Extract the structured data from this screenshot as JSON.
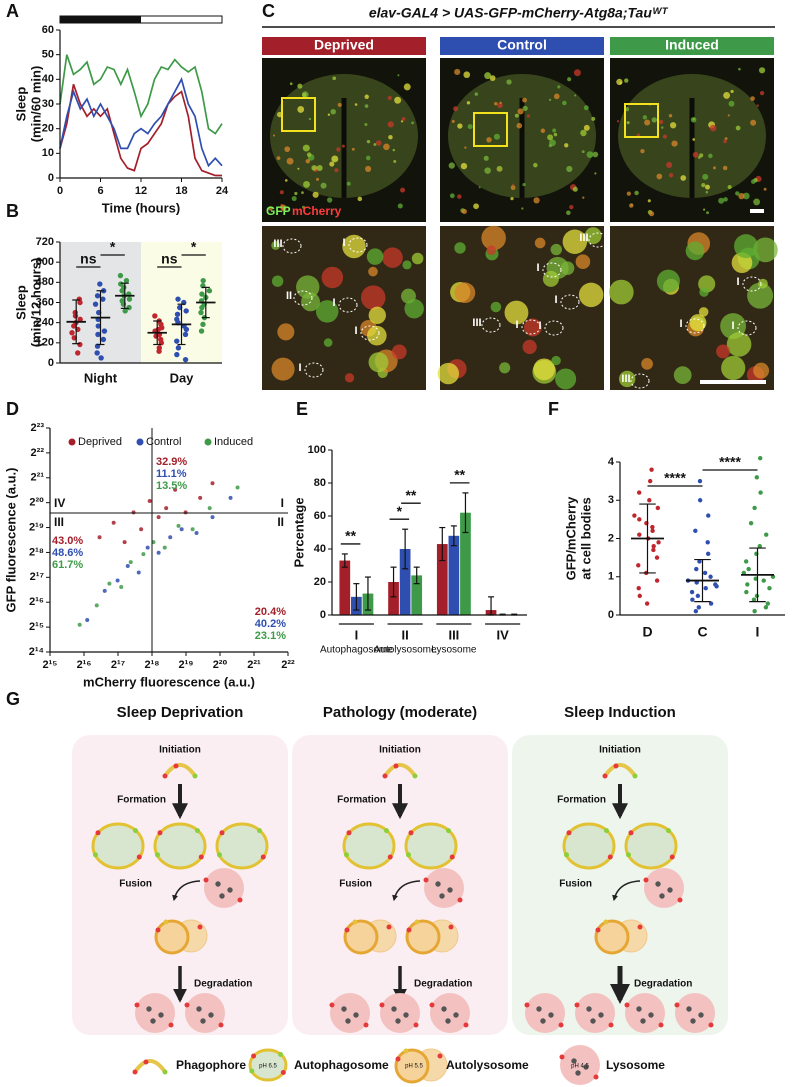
{
  "panel_labels": [
    "A",
    "B",
    "C",
    "D",
    "E",
    "F",
    "G"
  ],
  "chart_data": [
    {
      "type": "line",
      "xlabel": "Time (hours)",
      "ylabel": [
        "Sleep",
        "(min/60 min)"
      ],
      "x": [
        0,
        1,
        2,
        3,
        4,
        5,
        6,
        7,
        8,
        9,
        10,
        11,
        12,
        13,
        14,
        15,
        16,
        17,
        18,
        19,
        20,
        21,
        22,
        23,
        24
      ],
      "xlim": [
        0,
        24
      ],
      "xticks": [
        0,
        6,
        12,
        18,
        24
      ],
      "ylim": [
        0,
        60
      ],
      "yticks": [
        0,
        10,
        20,
        30,
        40,
        50,
        60
      ],
      "dark_period": [
        0,
        12
      ],
      "series": [
        {
          "color": "#a3202a",
          "values": [
            12,
            22,
            38,
            30,
            25,
            28,
            25,
            28,
            18,
            8,
            4,
            3,
            12,
            14,
            18,
            22,
            30,
            33,
            35,
            25,
            8,
            3,
            2,
            1,
            1
          ]
        },
        {
          "color": "#2f4fb0",
          "values": [
            12,
            25,
            35,
            28,
            32,
            25,
            30,
            25,
            20,
            12,
            12,
            18,
            20,
            18,
            22,
            25,
            30,
            35,
            40,
            30,
            25,
            12,
            5,
            8,
            5
          ]
        },
        {
          "color": "#3e9a48",
          "values": [
            30,
            50,
            42,
            44,
            47,
            38,
            40,
            45,
            44,
            38,
            44,
            35,
            25,
            30,
            40,
            45,
            44,
            48,
            45,
            43,
            45,
            35,
            20,
            18,
            22
          ]
        }
      ]
    },
    {
      "type": "dotplot",
      "ylabel": [
        "Sleep",
        "(min/12 hours)"
      ],
      "categories": [
        "Night",
        "Day"
      ],
      "backgrounds": [
        "#e4e5e7",
        "#fbfce6"
      ],
      "ylim": [
        0,
        720
      ],
      "yticks": [
        0,
        120,
        240,
        360,
        480,
        600,
        720
      ],
      "series": [
        {
          "color": "#c0262e",
          "points": [
            [
              380,
              360,
              300,
              280,
              260,
              240,
              220,
              200,
              180,
              150,
              110,
              60
            ],
            [
              280,
              250,
              230,
              210,
              200,
              190,
              170,
              160,
              140,
              120,
              90,
              70
            ]
          ],
          "mean": [
            245,
            180
          ],
          "sd": [
            130,
            70
          ]
        },
        {
          "color": "#2f4fb0",
          "points": [
            [
              470,
              430,
              400,
              380,
              350,
              300,
              260,
              220,
              190,
              170,
              140,
              100,
              60,
              30
            ],
            [
              380,
              360,
              330,
              310,
              290,
              260,
              240,
              220,
              200,
              170,
              130,
              90,
              50,
              20
            ]
          ],
          "mean": [
            270,
            230
          ],
          "sd": [
            160,
            120
          ]
        },
        {
          "color": "#3e9a48",
          "points": [
            [
              520,
              490,
              470,
              450,
              430,
              410,
              400,
              380,
              370,
              350,
              330,
              310
            ],
            [
              490,
              460,
              430,
              410,
              390,
              370,
              350,
              330,
              300,
              270,
              230,
              190
            ]
          ],
          "mean": [
            400,
            360
          ],
          "sd": [
            75,
            90
          ]
        }
      ],
      "annotations": [
        {
          "category": 0,
          "pair": [
            0,
            1
          ],
          "text": "ns"
        },
        {
          "category": 0,
          "pair": [
            1,
            2
          ],
          "text": "*"
        },
        {
          "category": 1,
          "pair": [
            0,
            1
          ],
          "text": "ns"
        },
        {
          "category": 1,
          "pair": [
            1,
            2
          ],
          "text": "*"
        }
      ]
    },
    {
      "type": "scatter",
      "xlabel": "mCherry fluorescence (a.u.)",
      "ylabel": "GFP fluorescence (a.u.)",
      "log_base": 2,
      "xlim": [
        32768,
        4194304
      ],
      "ylim": [
        16384,
        8388608
      ],
      "xticks": [
        {
          "value": 32768,
          "label": "2¹⁵"
        },
        {
          "value": 65536,
          "label": "2¹⁶"
        },
        {
          "value": 131072,
          "label": "2¹⁷"
        },
        {
          "value": 262144,
          "label": "2¹⁸"
        },
        {
          "value": 524288,
          "label": "2¹⁹"
        },
        {
          "value": 1048576,
          "label": "2²⁰"
        },
        {
          "value": 2097152,
          "label": "2²¹"
        },
        {
          "value": 4194304,
          "label": "2²²"
        }
      ],
      "yticks": [
        {
          "value": 16384,
          "label": "2¹⁴"
        },
        {
          "value": 32768,
          "label": "2¹⁵"
        },
        {
          "value": 65536,
          "label": "2¹⁶"
        },
        {
          "value": 131072,
          "label": "2¹⁷"
        },
        {
          "value": 262144,
          "label": "2¹⁸"
        },
        {
          "value": 524288,
          "label": "2¹⁹"
        },
        {
          "value": 1048576,
          "label": "2²⁰"
        },
        {
          "value": 2097152,
          "label": "2²¹"
        },
        {
          "value": 4194304,
          "label": "2²²"
        },
        {
          "value": 8388608,
          "label": "2²³"
        }
      ],
      "thresholds": [
        262144,
        786432
      ],
      "quadrants": [
        "I",
        "II",
        "III",
        "IV"
      ],
      "series": [
        {
          "name": "Deprived",
          "color": "#a3202a",
          "x": [
            90000,
            120000,
            150000,
            180000,
            210000,
            250000,
            300000,
            350000,
            420000,
            520000,
            700000,
            900000
          ],
          "y": [
            400000,
            600000,
            350000,
            800000,
            500000,
            1100000,
            700000,
            900000,
            1500000,
            800000,
            1200000,
            1800000
          ],
          "quadrant_values": [
            32.9,
            20.4,
            43.0
          ],
          "quadrant_value_labels": [
            "32.9%",
            "20.4%",
            "43.0%"
          ]
        },
        {
          "name": "Control",
          "color": "#2f4fb0",
          "x": [
            70000,
            100000,
            130000,
            160000,
            200000,
            240000,
            300000,
            380000,
            480000,
            650000,
            900000,
            1300000
          ],
          "y": [
            40000,
            90000,
            120000,
            180000,
            150000,
            300000,
            260000,
            400000,
            500000,
            450000,
            700000,
            1200000
          ],
          "quadrant_values": [
            11.1,
            40.2,
            48.6
          ],
          "quadrant_value_labels": [
            "11.1%",
            "40.2%",
            "48.6%"
          ]
        },
        {
          "name": "Induced",
          "color": "#3e9a48",
          "x": [
            60000,
            85000,
            110000,
            140000,
            170000,
            220000,
            270000,
            340000,
            450000,
            600000,
            850000,
            1500000
          ],
          "y": [
            35000,
            60000,
            110000,
            100000,
            200000,
            250000,
            350000,
            300000,
            550000,
            500000,
            900000,
            1600000
          ],
          "quadrant_values": [
            13.5,
            23.1,
            61.7
          ],
          "quadrant_value_labels": [
            "13.5%",
            "23.1%",
            "61.7%"
          ]
        }
      ]
    },
    {
      "type": "bar",
      "ylabel": "Percentage",
      "categories": [
        "I",
        "II",
        "III",
        "IV"
      ],
      "category_sublabels": [
        "Autophagosome",
        "Autolysosome",
        "Lysosome",
        null
      ],
      "ylim": [
        0,
        100
      ],
      "yticks": [
        0,
        20,
        40,
        60,
        80,
        100
      ],
      "series": [
        {
          "color": "#a3202a",
          "values": [
            33,
            20,
            43,
            3
          ],
          "errors": [
            4,
            9,
            10,
            8
          ]
        },
        {
          "color": "#2f4fb0",
          "values": [
            11,
            40,
            48,
            0
          ],
          "errors": [
            8,
            12,
            6,
            0.5
          ]
        },
        {
          "color": "#3e9a48",
          "values": [
            13,
            24,
            62,
            0
          ],
          "errors": [
            10,
            5,
            12,
            0.5
          ]
        }
      ],
      "annotations": [
        {
          "category": 0,
          "pair": [
            0,
            1
          ],
          "text": "**"
        },
        {
          "category": 1,
          "pair": [
            0,
            1
          ],
          "text": "*"
        },
        {
          "category": 1,
          "pair": [
            1,
            2
          ],
          "text": "**"
        },
        {
          "category": 2,
          "pair": [
            1,
            2
          ],
          "text": "**"
        }
      ]
    },
    {
      "type": "strip",
      "ylabel": [
        "GFP/mCherry",
        "at cell bodies"
      ],
      "categories": [
        "D",
        "C",
        "I"
      ],
      "colors": [
        "#c0262e",
        "#2f4fb0",
        "#3e9a48"
      ],
      "ylim": [
        0,
        4
      ],
      "yticks": [
        0,
        1,
        2,
        3,
        4
      ],
      "points": [
        [
          3.8,
          3.5,
          3.2,
          3.0,
          2.8,
          2.6,
          2.5,
          2.4,
          2.3,
          2.2,
          2.1,
          2.0,
          1.9,
          1.8,
          1.7,
          1.5,
          1.3,
          1.1,
          0.9,
          0.7,
          0.5,
          0.3
        ],
        [
          3.5,
          3.0,
          2.6,
          2.2,
          1.9,
          1.6,
          1.4,
          1.2,
          1.1,
          1.0,
          0.9,
          0.85,
          0.8,
          0.75,
          0.7,
          0.6,
          0.5,
          0.4,
          0.3,
          0.2,
          0.1
        ],
        [
          4.1,
          3.6,
          3.2,
          2.8,
          2.4,
          2.1,
          1.8,
          1.6,
          1.4,
          1.2,
          1.1,
          1.0,
          0.95,
          0.9,
          0.8,
          0.7,
          0.6,
          0.5,
          0.4,
          0.3,
          0.2,
          0.1
        ]
      ],
      "mean": [
        2.0,
        0.9,
        1.05
      ],
      "sd": [
        0.9,
        0.55,
        0.7
      ],
      "annotations": [
        {
          "pair": [
            0,
            1
          ],
          "text": "****"
        },
        {
          "pair": [
            1,
            2
          ],
          "text": "****"
        }
      ]
    }
  ],
  "imaging": {
    "title": "elav-GAL4 > UAS-GFP-mCherry-Atg8a;Tauᵂᵀ",
    "conditions": [
      {
        "name": "Deprived",
        "color": "#a3202a"
      },
      {
        "name": "Control",
        "color": "#2f4fb0"
      },
      {
        "name": "Induced",
        "color": "#3e9a48"
      }
    ],
    "channels": [
      {
        "name": "GFP",
        "color": "#7cf05a"
      },
      {
        "name": "mCherry",
        "color": "#ff3a3a"
      }
    ],
    "zoom_labels": [
      [
        "III",
        "I",
        "II",
        "I",
        "I",
        "I"
      ],
      [
        "III",
        "I",
        "I",
        "I",
        "III",
        "I"
      ],
      [
        "I",
        "I",
        "I",
        "III"
      ]
    ]
  },
  "diagram": {
    "columns": [
      {
        "title": "Sleep Deprivation",
        "autophagosomes": 3,
        "autolysosomes": 1,
        "lysosomes": 2
      },
      {
        "title": "Pathology (moderate)",
        "autophagosomes": 2,
        "autolysosomes": 2,
        "lysosomes": 3
      },
      {
        "title": "Sleep Induction",
        "autophagosomes": 2,
        "autolysosomes": 1,
        "lysosomes": 4
      }
    ],
    "steps": [
      "Initiation",
      "Formation",
      "Fusion",
      "Degradation"
    ],
    "legend": [
      {
        "name": "Phagophore"
      },
      {
        "name": "Autophagosome",
        "ph": "pH 6.5"
      },
      {
        "name": "Autolysosome",
        "ph": "pH 5.5"
      },
      {
        "name": "Lysosome",
        "ph": "pH 4.5"
      }
    ]
  }
}
